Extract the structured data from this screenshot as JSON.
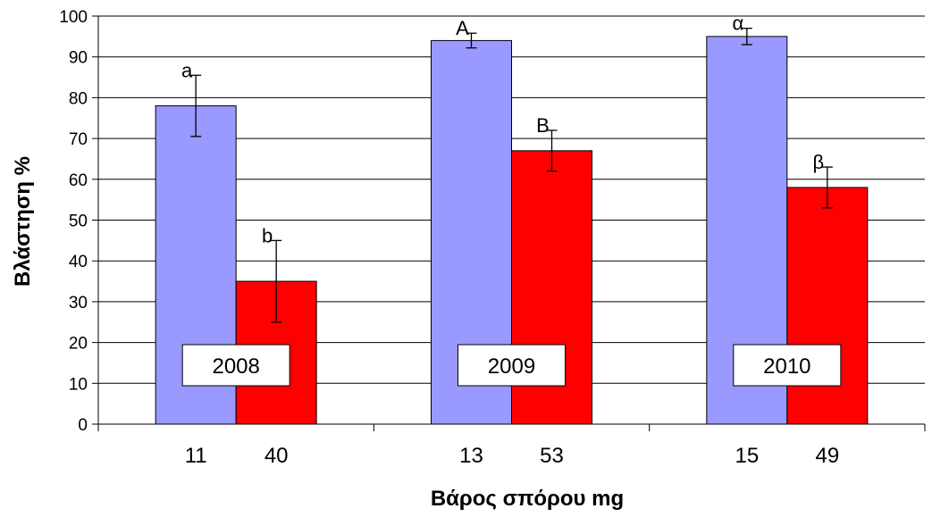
{
  "chart_data": {
    "type": "bar",
    "xlabel": "Βάρος σπόρου mg",
    "ylabel": "Βλάστηση %",
    "ylim": [
      0,
      100
    ],
    "ytick_step": 10,
    "grid": true,
    "colors": {
      "light": "#9999ff",
      "heavy": "#ff0000"
    },
    "groups": [
      {
        "year": "2008",
        "bars": [
          {
            "category": "11",
            "value": 78,
            "error": 7.5,
            "letter": "a",
            "color": "light"
          },
          {
            "category": "40",
            "value": 35,
            "error": 10,
            "letter": "b",
            "color": "heavy"
          }
        ]
      },
      {
        "year": "2009",
        "bars": [
          {
            "category": "13",
            "value": 94,
            "error": 1.8,
            "letter": "A",
            "color": "light"
          },
          {
            "category": "53",
            "value": 67,
            "error": 5,
            "letter": "B",
            "color": "heavy"
          }
        ]
      },
      {
        "year": "2010",
        "bars": [
          {
            "category": "15",
            "value": 95,
            "error": 2,
            "letter": "α",
            "color": "light"
          },
          {
            "category": "49",
            "value": 58,
            "error": 5,
            "letter": "β",
            "color": "heavy"
          }
        ]
      }
    ]
  }
}
